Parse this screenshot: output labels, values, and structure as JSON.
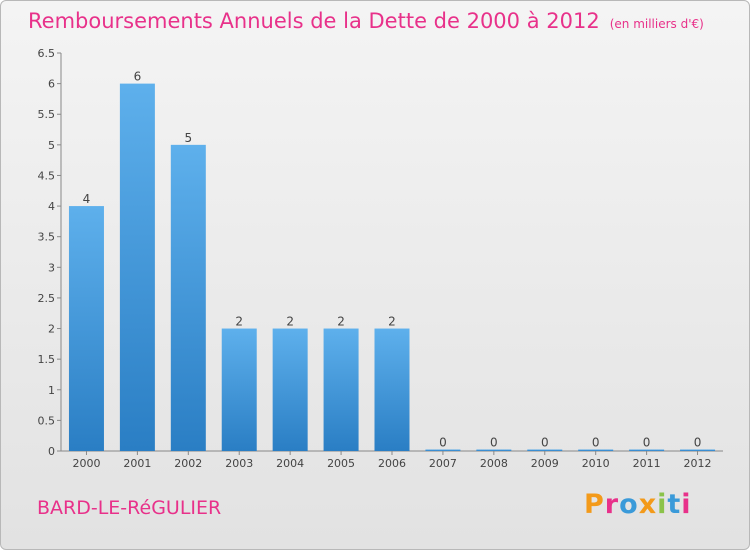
{
  "title": "Remboursements Annuels de la Dette de 2000 à 2012",
  "units": "(en milliers d'€)",
  "town": "BARD-LE-RéGULIER",
  "logo": "Proxiti",
  "colors": {
    "title": "#e8318a",
    "bar_light": "#5eb0ec",
    "bar_dark": "#2a7ec4",
    "logo": [
      "#f39a1a",
      "#e8318a",
      "#3a9ad9",
      "#f39a1a",
      "#8bc34a",
      "#3a9ad9",
      "#e8318a"
    ]
  },
  "chart_data": {
    "type": "bar",
    "title": "Remboursements Annuels de la Dette de 2000 à 2012",
    "categories": [
      "2000",
      "2001",
      "2002",
      "2003",
      "2004",
      "2005",
      "2006",
      "2007",
      "2008",
      "2009",
      "2010",
      "2011",
      "2012"
    ],
    "values": [
      4,
      6,
      5,
      2,
      2,
      2,
      2,
      0,
      0,
      0,
      0,
      0,
      0
    ],
    "data_labels": [
      "4",
      "6",
      "5",
      "2",
      "2",
      "2",
      "2",
      "0",
      "0",
      "0",
      "0",
      "0",
      "0"
    ],
    "ylim": [
      0,
      6.5
    ],
    "yticks": [
      0,
      0.5,
      1,
      1.5,
      2,
      2.5,
      3,
      3.5,
      4,
      4.5,
      5,
      5.5,
      6,
      6.5
    ],
    "ytick_labels": [
      "0",
      "0.5",
      "1",
      "1.5",
      "2",
      "2.5",
      "3",
      "3.5",
      "4",
      "4.5",
      "5",
      "5.5",
      "6",
      "6.5"
    ],
    "xlabel": "",
    "ylabel": "",
    "grid": false,
    "legend": "none"
  }
}
